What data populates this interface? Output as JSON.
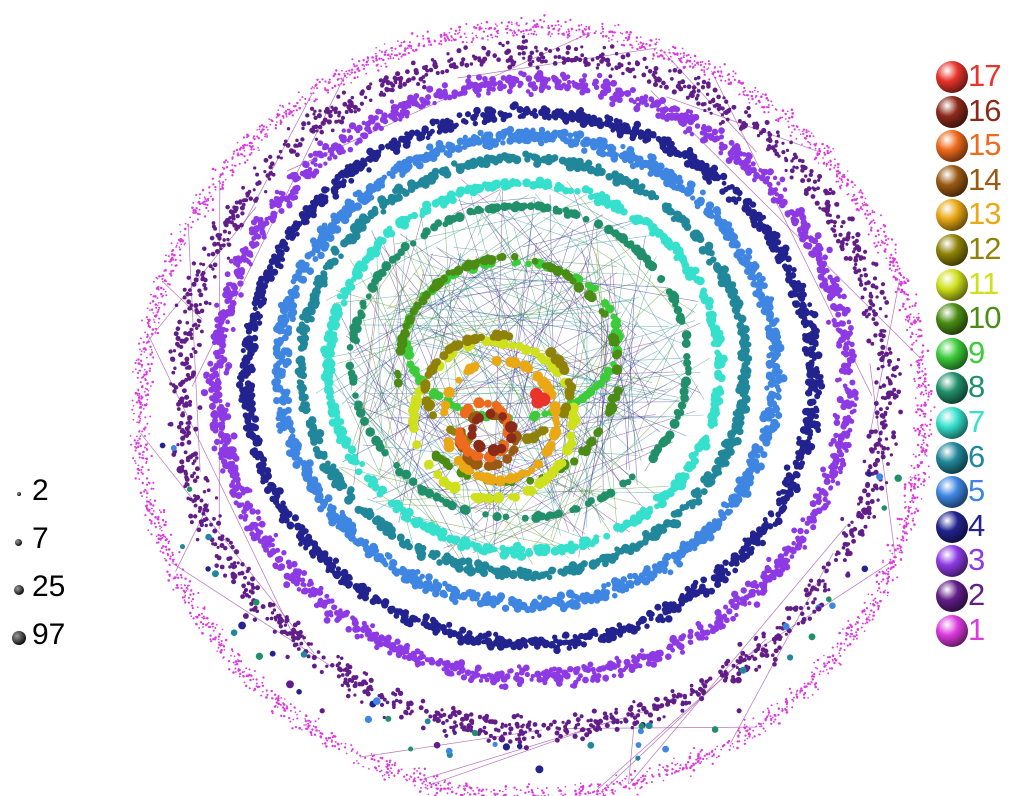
{
  "size_legend": [
    {
      "label": "2",
      "value": 2
    },
    {
      "label": "7",
      "value": 7
    },
    {
      "label": "25",
      "value": 25
    },
    {
      "label": "97",
      "value": 97
    }
  ],
  "shell_legend": [
    {
      "label": "17",
      "color": "#e8342b",
      "ring": 17
    },
    {
      "label": "16",
      "color": "#8c2a1a",
      "ring": 16
    },
    {
      "label": "15",
      "color": "#ee6a1c",
      "ring": 15
    },
    {
      "label": "14",
      "color": "#9a5a12",
      "ring": 14
    },
    {
      "label": "13",
      "color": "#e9a814",
      "ring": 13
    },
    {
      "label": "12",
      "color": "#8f8208",
      "ring": 12
    },
    {
      "label": "11",
      "color": "#cfe01c",
      "ring": 11
    },
    {
      "label": "10",
      "color": "#4a8c14",
      "ring": 10
    },
    {
      "label": "9",
      "color": "#3ccc3a",
      "ring": 9
    },
    {
      "label": "8",
      "color": "#21906a",
      "ring": 8
    },
    {
      "label": "7",
      "color": "#35e0cc",
      "ring": 7
    },
    {
      "label": "6",
      "color": "#21879a",
      "ring": 6
    },
    {
      "label": "5",
      "color": "#3e86e2",
      "ring": 5
    },
    {
      "label": "4",
      "color": "#22238e",
      "ring": 4
    },
    {
      "label": "3",
      "color": "#8e3ae4",
      "ring": 3
    },
    {
      "label": "2",
      "color": "#621e88",
      "ring": 2
    },
    {
      "label": "1",
      "color": "#dc3ade",
      "ring": 1
    }
  ]
}
